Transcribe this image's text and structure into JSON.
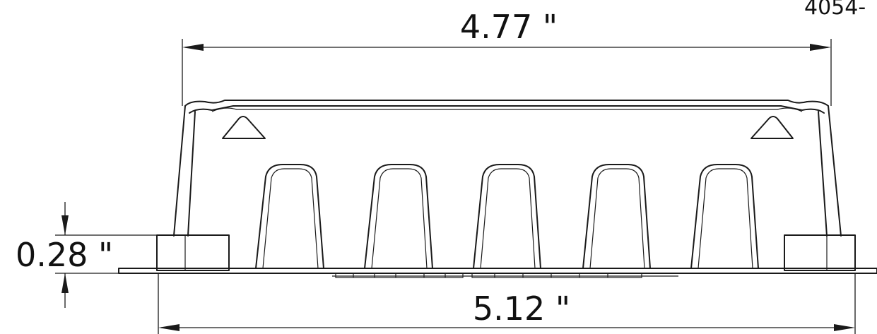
{
  "part_number_partial": "4054-",
  "dimensions": {
    "top_width": "4.77 \"",
    "bottom_width": "5.12 \"",
    "base_height": "0.28 \""
  }
}
